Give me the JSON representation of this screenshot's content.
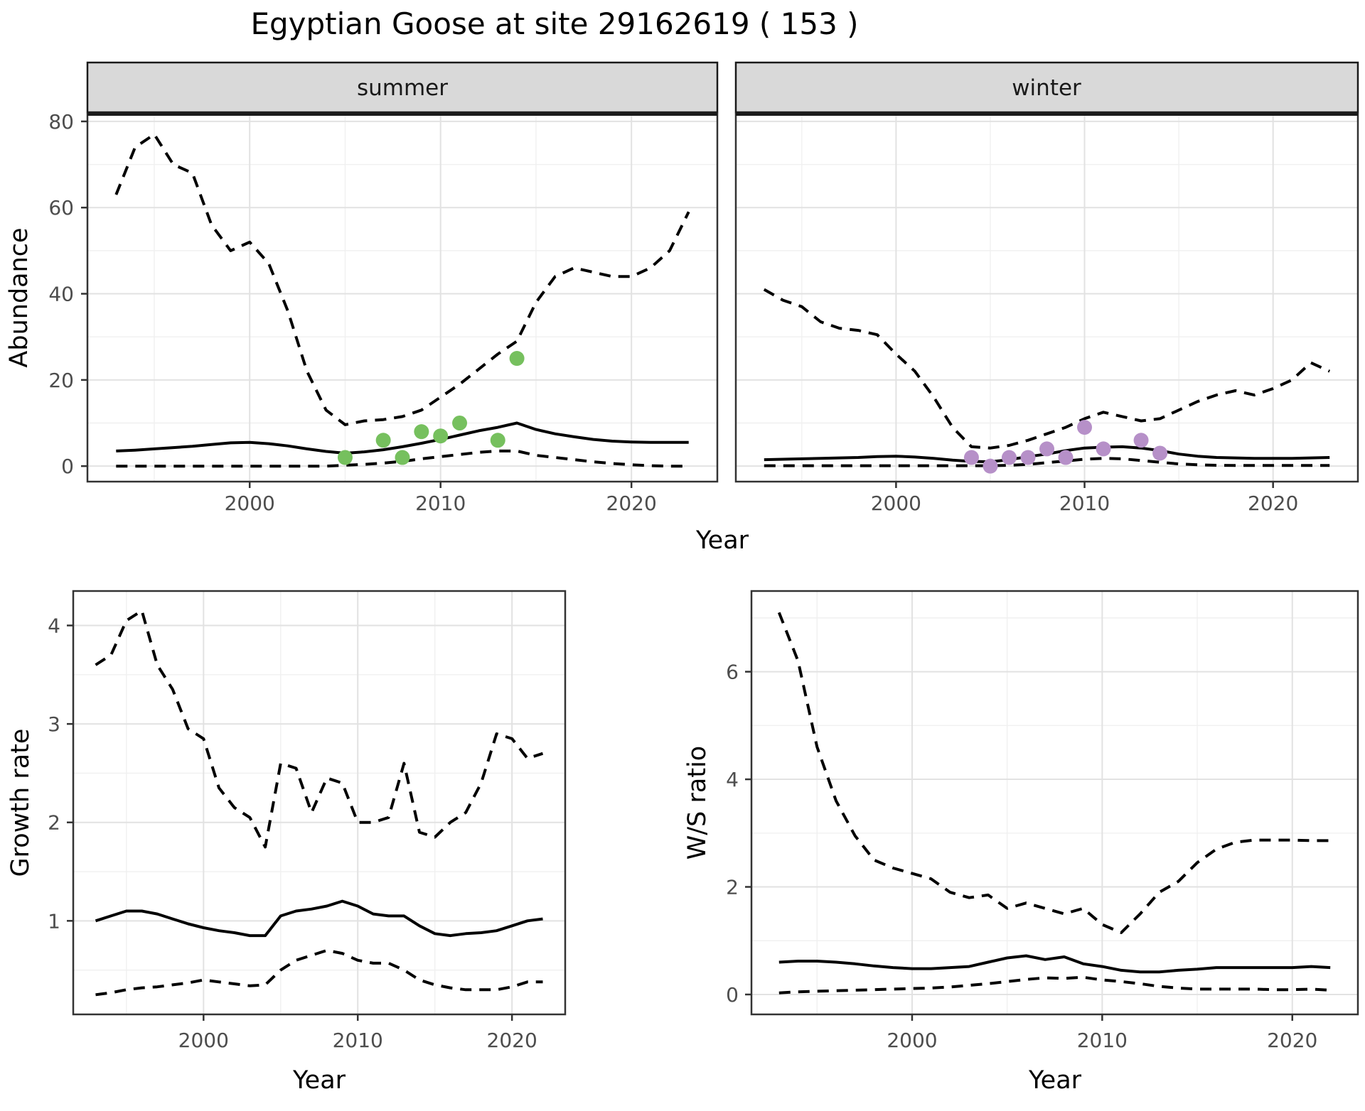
{
  "title": "Egyptian Goose at site 29162619 ( 153 )",
  "axis_titles": {
    "top_x": "Year",
    "bottom_left_x": "Year",
    "bottom_right_x": "Year",
    "abundance": "Abundance",
    "growth": "Growth rate",
    "ws": "W/S ratio"
  },
  "colors": {
    "summer_points": "#76c05e",
    "winter_points": "#b690c8",
    "median_line": "#000000",
    "ci_line": "#000000",
    "strip_bg": "#d9d9d9",
    "grid_major": "#e2e2e2",
    "grid_minor": "#f0f0f0",
    "tick_text": "#4d4d4d",
    "panel_border": "#333333"
  },
  "chart_data": [
    {
      "id": "abundance_summer",
      "type": "line",
      "facet_label": "summer",
      "xlabel": "Year",
      "ylabel": "Abundance",
      "xlim": [
        1991.5,
        2024.5
      ],
      "ylim": [
        -3.6,
        81.8
      ],
      "x_ticks": [
        2000,
        2010,
        2020
      ],
      "y_ticks": [
        0,
        20,
        40,
        60,
        80
      ],
      "x_minor": [
        1995,
        2005,
        2015
      ],
      "y_minor": [
        10,
        30,
        50,
        70
      ],
      "x": [
        1993,
        1994,
        1995,
        1996,
        1997,
        1998,
        1999,
        2000,
        2001,
        2002,
        2003,
        2004,
        2005,
        2006,
        2007,
        2008,
        2009,
        2010,
        2011,
        2012,
        2013,
        2014,
        2015,
        2016,
        2017,
        2018,
        2019,
        2020,
        2021,
        2022,
        2023
      ],
      "series": [
        {
          "name": "upper_95ci",
          "style": "dashed",
          "values": [
            63,
            74,
            77,
            70,
            68,
            56,
            50,
            52,
            47,
            36,
            22,
            13,
            9.6,
            10.5,
            10.8,
            11.5,
            13,
            16,
            19,
            22.5,
            26,
            29,
            38,
            44,
            46,
            45,
            44,
            44,
            46,
            50,
            59
          ]
        },
        {
          "name": "median",
          "style": "solid",
          "values": [
            3.5,
            3.7,
            4,
            4.3,
            4.6,
            5,
            5.4,
            5.5,
            5.2,
            4.7,
            4,
            3.4,
            3,
            3.3,
            3.8,
            4.5,
            5.3,
            6.2,
            7.2,
            8.2,
            9,
            10,
            8.5,
            7.5,
            6.8,
            6.2,
            5.8,
            5.6,
            5.5,
            5.5,
            5.5
          ]
        },
        {
          "name": "lower_95ci",
          "style": "dashed",
          "values": [
            0,
            0,
            0,
            0,
            0,
            0,
            0,
            0,
            0,
            0,
            0,
            0,
            0.2,
            0.4,
            0.7,
            1.1,
            1.7,
            2.2,
            2.7,
            3.2,
            3.5,
            3.5,
            2.5,
            2,
            1.5,
            1,
            0.6,
            0.3,
            0.1,
            0,
            0
          ]
        }
      ],
      "points": {
        "name": "observed_counts_summer",
        "color_key": "summer_points",
        "xy": [
          [
            2005,
            2
          ],
          [
            2007,
            6
          ],
          [
            2008,
            2
          ],
          [
            2009,
            8
          ],
          [
            2010,
            7
          ],
          [
            2011,
            10
          ],
          [
            2013,
            6
          ],
          [
            2014,
            25
          ]
        ]
      }
    },
    {
      "id": "abundance_winter",
      "type": "line",
      "facet_label": "winter",
      "xlabel": "Year",
      "ylabel": "Abundance",
      "xlim": [
        1991.5,
        2024.5
      ],
      "ylim": [
        -3.6,
        81.8
      ],
      "x_ticks": [
        2000,
        2010,
        2020
      ],
      "y_ticks": [
        0,
        20,
        40,
        60,
        80
      ],
      "x_minor": [
        1995,
        2005,
        2015
      ],
      "y_minor": [
        10,
        30,
        50,
        70
      ],
      "x": [
        1993,
        1994,
        1995,
        1996,
        1997,
        1998,
        1999,
        2000,
        2001,
        2002,
        2003,
        2004,
        2005,
        2006,
        2007,
        2008,
        2009,
        2010,
        2011,
        2012,
        2013,
        2014,
        2015,
        2016,
        2017,
        2018,
        2019,
        2020,
        2021,
        2022,
        2023
      ],
      "series": [
        {
          "name": "upper_95ci",
          "style": "dashed",
          "values": [
            41,
            38.5,
            37,
            33.5,
            32,
            31.5,
            30.5,
            26,
            22,
            16,
            9,
            4.5,
            4.2,
            4.8,
            6,
            7.5,
            9,
            11,
            12.5,
            11.5,
            10.5,
            11,
            13,
            15,
            16.5,
            17.5,
            16.5,
            18,
            20,
            24,
            22
          ]
        },
        {
          "name": "median",
          "style": "solid",
          "values": [
            1.5,
            1.6,
            1.7,
            1.8,
            1.9,
            2,
            2.2,
            2.3,
            2.1,
            1.8,
            1.4,
            1.1,
            1,
            1.5,
            2.2,
            2.8,
            3.6,
            4.2,
            4.4,
            4.5,
            4.2,
            3.6,
            2.8,
            2.3,
            2,
            1.9,
            1.8,
            1.8,
            1.8,
            1.9,
            2
          ]
        },
        {
          "name": "lower_95ci",
          "style": "dashed",
          "values": [
            0.1,
            0.1,
            0.1,
            0.1,
            0.1,
            0.1,
            0.1,
            0.1,
            0.1,
            0.1,
            0.1,
            0.1,
            0.1,
            0.2,
            0.4,
            0.8,
            1.2,
            1.6,
            1.8,
            1.7,
            1.3,
            0.9,
            0.5,
            0.3,
            0.2,
            0.15,
            0.15,
            0.15,
            0.15,
            0.15,
            0.15
          ]
        }
      ],
      "points": {
        "name": "observed_counts_winter",
        "color_key": "winter_points",
        "xy": [
          [
            2004,
            2
          ],
          [
            2005,
            0
          ],
          [
            2006,
            2
          ],
          [
            2007,
            2
          ],
          [
            2008,
            4
          ],
          [
            2009,
            2
          ],
          [
            2010,
            9
          ],
          [
            2011,
            4
          ],
          [
            2013,
            6
          ],
          [
            2014,
            3
          ]
        ]
      }
    },
    {
      "id": "growth_rate",
      "type": "line",
      "facet_label": "",
      "xlabel": "Year",
      "ylabel": "Growth rate",
      "xlim": [
        1991.55,
        2023.45
      ],
      "ylim": [
        0.05,
        4.35
      ],
      "x_ticks": [
        2000,
        2010,
        2020
      ],
      "y_ticks": [
        1,
        2,
        3,
        4
      ],
      "x_minor": [
        1995,
        2005,
        2015
      ],
      "y_minor": [
        0.5,
        1.5,
        2.5,
        3.5
      ],
      "x": [
        1993,
        1994,
        1995,
        1996,
        1997,
        1998,
        1999,
        2000,
        2001,
        2002,
        2003,
        2004,
        2005,
        2006,
        2007,
        2008,
        2009,
        2010,
        2011,
        2012,
        2013,
        2014,
        2015,
        2016,
        2017,
        2018,
        2019,
        2020,
        2021,
        2022
      ],
      "series": [
        {
          "name": "upper_95ci",
          "style": "dashed",
          "values": [
            3.6,
            3.7,
            4.05,
            4.15,
            3.6,
            3.35,
            2.95,
            2.85,
            2.35,
            2.15,
            2.05,
            1.75,
            2.6,
            2.55,
            2.1,
            2.45,
            2.4,
            2,
            2,
            2.05,
            2.6,
            1.9,
            1.85,
            2,
            2.1,
            2.4,
            2.9,
            2.85,
            2.65,
            2.7
          ]
        },
        {
          "name": "median",
          "style": "solid",
          "values": [
            1,
            1.05,
            1.1,
            1.1,
            1.07,
            1.02,
            0.97,
            0.93,
            0.9,
            0.88,
            0.85,
            0.85,
            1.05,
            1.1,
            1.12,
            1.15,
            1.2,
            1.15,
            1.07,
            1.05,
            1.05,
            0.95,
            0.87,
            0.85,
            0.87,
            0.88,
            0.9,
            0.95,
            1,
            1.02
          ]
        },
        {
          "name": "lower_95ci",
          "style": "dashed",
          "values": [
            0.25,
            0.27,
            0.3,
            0.32,
            0.33,
            0.35,
            0.37,
            0.4,
            0.38,
            0.36,
            0.34,
            0.35,
            0.5,
            0.6,
            0.65,
            0.7,
            0.67,
            0.6,
            0.57,
            0.57,
            0.5,
            0.4,
            0.35,
            0.32,
            0.3,
            0.3,
            0.3,
            0.33,
            0.38,
            0.38
          ]
        }
      ],
      "points": null
    },
    {
      "id": "ws_ratio",
      "type": "line",
      "facet_label": "",
      "xlabel": "Year",
      "ylabel": "W/S ratio",
      "xlim": [
        1991.55,
        2023.45
      ],
      "ylim": [
        -0.37,
        7.5
      ],
      "x_ticks": [
        2000,
        2010,
        2020
      ],
      "y_ticks": [
        0,
        2,
        4,
        6
      ],
      "x_minor": [
        1995,
        2005,
        2015
      ],
      "y_minor": [
        1,
        3,
        5,
        7
      ],
      "x": [
        1993,
        1994,
        1995,
        1996,
        1997,
        1998,
        1999,
        2000,
        2001,
        2002,
        2003,
        2004,
        2005,
        2006,
        2007,
        2008,
        2009,
        2010,
        2011,
        2012,
        2013,
        2014,
        2015,
        2016,
        2017,
        2018,
        2019,
        2020,
        2021,
        2022
      ],
      "series": [
        {
          "name": "upper_95ci",
          "style": "dashed",
          "values": [
            7.1,
            6.2,
            4.6,
            3.6,
            2.95,
            2.5,
            2.35,
            2.25,
            2.15,
            1.9,
            1.8,
            1.85,
            1.6,
            1.7,
            1.6,
            1.5,
            1.6,
            1.3,
            1.15,
            1.5,
            1.9,
            2.1,
            2.45,
            2.7,
            2.83,
            2.87,
            2.87,
            2.87,
            2.86,
            2.86
          ]
        },
        {
          "name": "median",
          "style": "solid",
          "values": [
            0.6,
            0.62,
            0.62,
            0.6,
            0.57,
            0.53,
            0.5,
            0.48,
            0.48,
            0.5,
            0.52,
            0.6,
            0.68,
            0.72,
            0.65,
            0.7,
            0.57,
            0.52,
            0.45,
            0.42,
            0.42,
            0.45,
            0.47,
            0.5,
            0.5,
            0.5,
            0.5,
            0.5,
            0.52,
            0.5
          ]
        },
        {
          "name": "lower_95ci",
          "style": "dashed",
          "values": [
            0.03,
            0.05,
            0.06,
            0.07,
            0.08,
            0.09,
            0.1,
            0.11,
            0.12,
            0.14,
            0.17,
            0.2,
            0.24,
            0.28,
            0.31,
            0.3,
            0.32,
            0.27,
            0.24,
            0.2,
            0.15,
            0.12,
            0.1,
            0.1,
            0.1,
            0.1,
            0.09,
            0.09,
            0.1,
            0.08
          ]
        }
      ],
      "points": null
    }
  ]
}
